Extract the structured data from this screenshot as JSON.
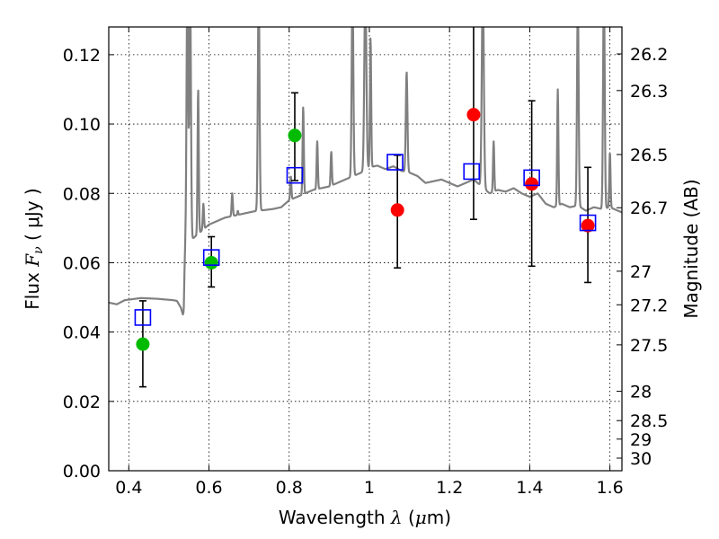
{
  "chart_data": {
    "type": "scatter",
    "xlabel": {
      "text": "Wavelength",
      "symbol": "λ",
      "unit_open": " (",
      "unit_mu": "μ",
      "unit_rest": "m)"
    },
    "ylabel": {
      "text": "Flux",
      "symbol": "F",
      "subscript": "ν",
      "unit": "( μJy )"
    },
    "y2label": "Magnitude (AB)",
    "xlim": [
      0.35,
      1.63
    ],
    "ylim": [
      0.0,
      0.128
    ],
    "grid": true,
    "x_ticks": [
      {
        "value": 0.4,
        "label": "0.4"
      },
      {
        "value": 0.6,
        "label": "0.6"
      },
      {
        "value": 0.8,
        "label": "0.8"
      },
      {
        "value": 1.0,
        "label": "1"
      },
      {
        "value": 1.2,
        "label": "1.2"
      },
      {
        "value": 1.4,
        "label": "1.4"
      },
      {
        "value": 1.6,
        "label": "1.6"
      }
    ],
    "y_ticks": [
      {
        "value": 0.0,
        "label": "0.00"
      },
      {
        "value": 0.02,
        "label": "0.02"
      },
      {
        "value": 0.04,
        "label": "0.04"
      },
      {
        "value": 0.06,
        "label": "0.06"
      },
      {
        "value": 0.08,
        "label": "0.08"
      },
      {
        "value": 0.1,
        "label": "0.10"
      },
      {
        "value": 0.12,
        "label": "0.12"
      }
    ],
    "mag_ticks": [
      {
        "value": 26.2,
        "label": "26.2"
      },
      {
        "value": 26.3,
        "label": "26.3"
      },
      {
        "value": 26.5,
        "label": "26.5"
      },
      {
        "value": 26.7,
        "label": "26.7"
      },
      {
        "value": 27.0,
        "label": "27"
      },
      {
        "value": 27.2,
        "label": "27.2"
      },
      {
        "value": 27.5,
        "label": "27.5"
      },
      {
        "value": 28.0,
        "label": "28"
      },
      {
        "value": 28.5,
        "label": "28.5"
      },
      {
        "value": 29.0,
        "label": "29"
      },
      {
        "value": 30.0,
        "label": "30"
      }
    ],
    "series": [
      {
        "marker": "circle",
        "color": "#00bb00",
        "points": [
          {
            "x": 0.435,
            "y": 0.0365,
            "err_lo": 0.0242,
            "err_hi": 0.049
          },
          {
            "x": 0.606,
            "y": 0.06,
            "err_lo": 0.053,
            "err_hi": 0.0675
          },
          {
            "x": 0.814,
            "y": 0.0967,
            "err_lo": 0.0837,
            "err_hi": 0.109
          }
        ]
      },
      {
        "marker": "circle",
        "color": "#ff0000",
        "points": [
          {
            "x": 1.07,
            "y": 0.0752,
            "err_lo": 0.0585,
            "err_hi": 0.091
          },
          {
            "x": 1.26,
            "y": 0.1027,
            "err_lo": 0.0725,
            "err_hi": 0.128
          },
          {
            "x": 1.405,
            "y": 0.0827,
            "err_lo": 0.059,
            "err_hi": 0.1067
          },
          {
            "x": 1.545,
            "y": 0.0707,
            "err_lo": 0.0543,
            "err_hi": 0.0875
          }
        ]
      },
      {
        "marker": "open-square",
        "color": "#0000ff",
        "points": [
          {
            "x": 0.435,
            "y": 0.0442
          },
          {
            "x": 0.606,
            "y": 0.0615
          },
          {
            "x": 0.814,
            "y": 0.0852
          },
          {
            "x": 1.064,
            "y": 0.089
          },
          {
            "x": 1.255,
            "y": 0.0863
          },
          {
            "x": 1.405,
            "y": 0.0845
          },
          {
            "x": 1.545,
            "y": 0.0715
          }
        ]
      }
    ],
    "template_spectrum": {
      "color": "#808080",
      "x": [
        0.35,
        0.37,
        0.39,
        0.41,
        0.43,
        0.45,
        0.47,
        0.49,
        0.51,
        0.52,
        0.53,
        0.535,
        0.537,
        0.539,
        0.541,
        0.545,
        0.548,
        0.55,
        0.555,
        0.56,
        0.58,
        0.6,
        0.62,
        0.64,
        0.66,
        0.68,
        0.7,
        0.72,
        0.74,
        0.76,
        0.78,
        0.8,
        0.82,
        0.84,
        0.86,
        0.88,
        0.9,
        0.92,
        0.94,
        0.96,
        0.98,
        1.0,
        1.02,
        1.04,
        1.06,
        1.08,
        1.1,
        1.12,
        1.14,
        1.16,
        1.18,
        1.2,
        1.22,
        1.24,
        1.26,
        1.28,
        1.3,
        1.32,
        1.34,
        1.36,
        1.38,
        1.4,
        1.42,
        1.44,
        1.46,
        1.48,
        1.5,
        1.52,
        1.54,
        1.56,
        1.58,
        1.6,
        1.62,
        1.63
      ],
      "y": [
        0.0485,
        0.048,
        0.0492,
        0.0495,
        0.0498,
        0.0497,
        0.0496,
        0.0494,
        0.0492,
        0.049,
        0.047,
        0.045,
        0.046,
        0.058,
        0.065,
        0.064,
        0.0655,
        0.066,
        0.0665,
        0.067,
        0.069,
        0.071,
        0.072,
        0.073,
        0.0735,
        0.074,
        0.0745,
        0.075,
        0.0752,
        0.0755,
        0.076,
        0.078,
        0.079,
        0.08,
        0.081,
        0.0815,
        0.082,
        0.083,
        0.084,
        0.085,
        0.086,
        0.0875,
        0.088,
        0.087,
        0.0878,
        0.0865,
        0.086,
        0.085,
        0.083,
        0.0835,
        0.084,
        0.083,
        0.082,
        0.083,
        0.084,
        0.082,
        0.08,
        0.081,
        0.0805,
        0.0815,
        0.08,
        0.079,
        0.08,
        0.077,
        0.076,
        0.077,
        0.076,
        0.0765,
        0.075,
        0.076,
        0.0755,
        0.076,
        0.075,
        0.0745
      ],
      "lines": [
        {
          "x": 0.546,
          "peak": 0.14,
          "w": 0.004
        },
        {
          "x": 0.553,
          "peak": 0.14,
          "w": 0.004
        },
        {
          "x": 0.573,
          "peak": 0.11,
          "w": 0.003
        },
        {
          "x": 0.586,
          "peak": 0.077,
          "w": 0.003
        },
        {
          "x": 0.658,
          "peak": 0.08,
          "w": 0.003
        },
        {
          "x": 0.672,
          "peak": 0.075,
          "w": 0.002
        },
        {
          "x": 0.724,
          "peak": 0.14,
          "w": 0.004
        },
        {
          "x": 0.804,
          "peak": 0.085,
          "w": 0.003
        },
        {
          "x": 0.835,
          "peak": 0.105,
          "w": 0.003
        },
        {
          "x": 0.87,
          "peak": 0.095,
          "w": 0.003
        },
        {
          "x": 0.905,
          "peak": 0.092,
          "w": 0.003
        },
        {
          "x": 0.958,
          "peak": 0.14,
          "w": 0.004
        },
        {
          "x": 0.99,
          "peak": 0.14,
          "w": 0.005
        },
        {
          "x": 1.003,
          "peak": 0.125,
          "w": 0.003
        },
        {
          "x": 1.093,
          "peak": 0.115,
          "w": 0.004
        },
        {
          "x": 1.283,
          "peak": 0.14,
          "w": 0.005
        },
        {
          "x": 1.31,
          "peak": 0.095,
          "w": 0.003
        },
        {
          "x": 1.47,
          "peak": 0.11,
          "w": 0.003
        },
        {
          "x": 1.52,
          "peak": 0.135,
          "w": 0.004
        },
        {
          "x": 1.585,
          "peak": 0.14,
          "w": 0.004
        },
        {
          "x": 1.6,
          "peak": 0.092,
          "w": 0.003
        }
      ]
    }
  }
}
